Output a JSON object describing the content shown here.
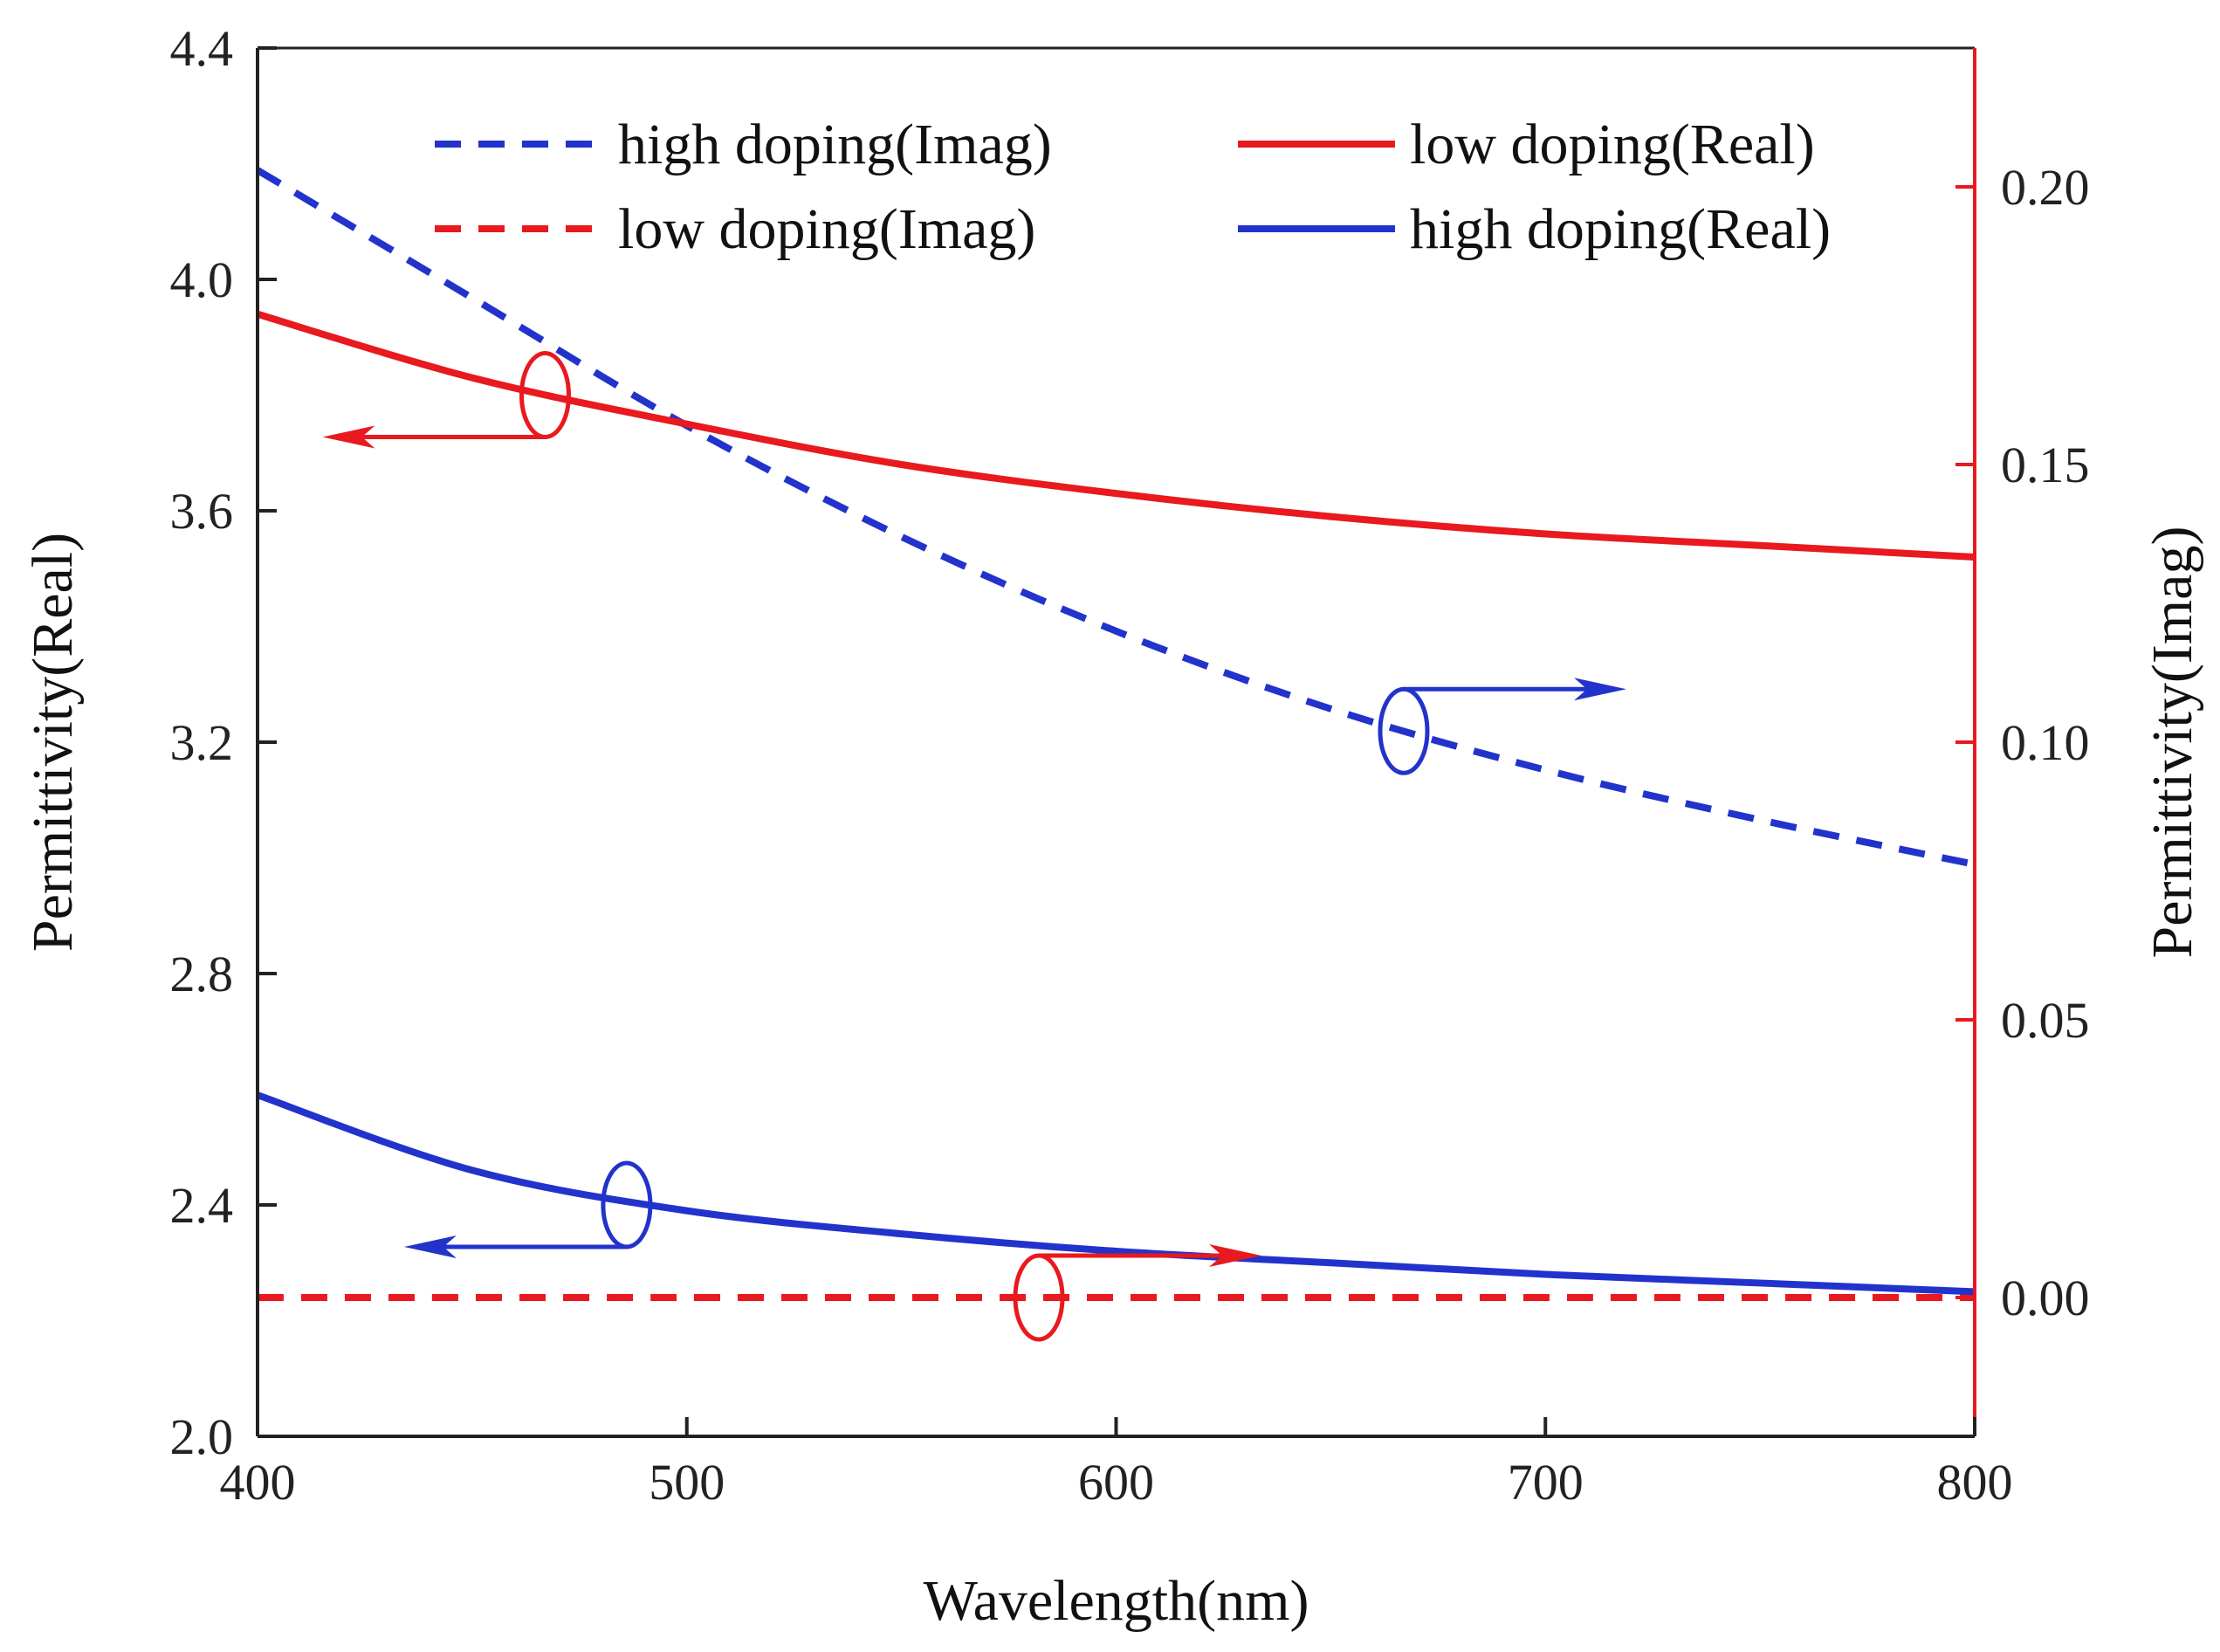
{
  "chart_data": {
    "type": "line",
    "title": "",
    "xlabel": "Wavelength(nm)",
    "ylabel_left": "Permittivity(Real)",
    "ylabel_right": "Permittivity(Imag)",
    "xlim": [
      400,
      800
    ],
    "ylim_left": [
      2.0,
      4.4
    ],
    "ylim_right": [
      -0.025,
      0.225
    ],
    "x_ticks": [
      400,
      500,
      600,
      700,
      800
    ],
    "x_tick_labels": [
      "400",
      "500",
      "600",
      "700",
      "800"
    ],
    "y_left_ticks": [
      2.0,
      2.4,
      2.8,
      3.2,
      3.6,
      4.0,
      4.4
    ],
    "y_left_tick_labels": [
      "2.0",
      "2.4",
      "2.8",
      "3.2",
      "3.6",
      "4.0",
      "4.4"
    ],
    "y_right_ticks": [
      0.0,
      0.05,
      0.1,
      0.15,
      0.2
    ],
    "y_right_tick_labels": [
      "0.00",
      "0.05",
      "0.10",
      "0.15",
      "0.20"
    ],
    "grid": false,
    "legend_position": "top",
    "series": [
      {
        "name": "high doping(Imag)",
        "axis": "right",
        "style": "dashed",
        "color": "#2233cc",
        "x": [
          400,
          450,
          500,
          550,
          600,
          650,
          700,
          750,
          800
        ],
        "values": [
          0.203,
          0.18,
          0.157,
          0.137,
          0.12,
          0.106,
          0.095,
          0.086,
          0.078
        ]
      },
      {
        "name": "low doping(Imag)",
        "axis": "right",
        "style": "dashed",
        "color": "#e8191f",
        "x": [
          400,
          500,
          600,
          700,
          800
        ],
        "values": [
          0.0,
          0.0,
          0.0,
          0.0,
          0.0
        ]
      },
      {
        "name": "low doping(Real)",
        "axis": "left",
        "style": "solid",
        "color": "#e8191f",
        "x": [
          400,
          450,
          500,
          550,
          600,
          650,
          700,
          750,
          800
        ],
        "values": [
          3.94,
          3.83,
          3.75,
          3.68,
          3.63,
          3.59,
          3.56,
          3.54,
          3.52
        ]
      },
      {
        "name": "high doping(Real)",
        "axis": "left",
        "style": "solid",
        "color": "#2233cc",
        "x": [
          400,
          450,
          500,
          550,
          600,
          650,
          700,
          750,
          800
        ],
        "values": [
          2.59,
          2.46,
          2.39,
          2.35,
          2.32,
          2.3,
          2.28,
          2.265,
          2.25
        ]
      }
    ],
    "annotations": [
      {
        "series": "low doping(Real)",
        "points_to": "left axis",
        "x": 467,
        "y": 3.8,
        "axis": "left",
        "direction": "left",
        "color": "#e8191f"
      },
      {
        "series": "high doping(Imag)",
        "points_to": "right axis",
        "x": 667,
        "y": 0.102,
        "axis": "right",
        "direction": "right",
        "color": "#2233cc"
      },
      {
        "series": "high doping(Real)",
        "points_to": "left axis",
        "x": 486,
        "y": 2.4,
        "axis": "left",
        "direction": "left",
        "color": "#2233cc"
      },
      {
        "series": "low doping(Imag)",
        "points_to": "right axis",
        "x": 582,
        "y": 0.0,
        "axis": "right",
        "direction": "right",
        "color": "#e8191f"
      }
    ],
    "colors": {
      "axis_left": "#222222",
      "axis_right": "#e8191f",
      "blue": "#2233cc",
      "red": "#e8191f"
    }
  }
}
